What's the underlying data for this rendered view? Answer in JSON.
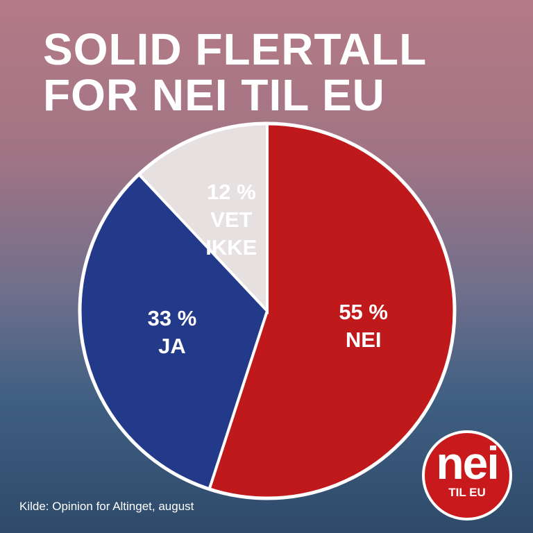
{
  "chart_data": {
    "type": "pie",
    "title": "SOLID FLERTALL FOR NEI TIL EU",
    "categories": [
      "NEI",
      "JA",
      "VET IKKE"
    ],
    "values": [
      55,
      33,
      12
    ],
    "value_labels": [
      "55 %",
      "33 %",
      "12 %"
    ],
    "colors": [
      "#c0191c",
      "#233a8b",
      "#e6e0e0"
    ],
    "source": "Kilde: Opinion for Altinget, august"
  },
  "logo": {
    "text": "nei",
    "subtext": "TIL EU"
  }
}
